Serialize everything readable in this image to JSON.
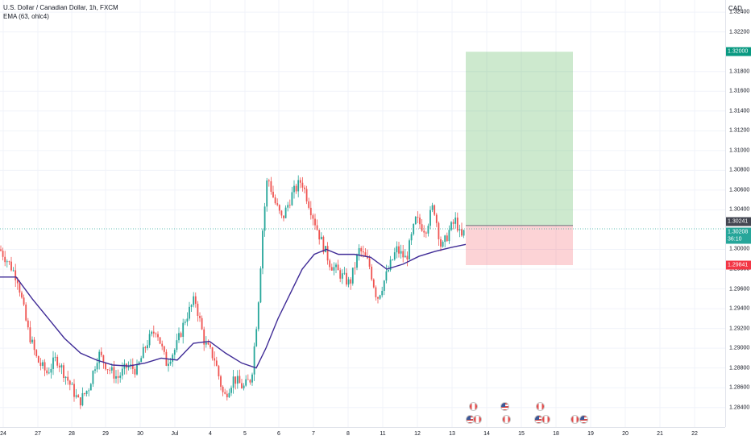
{
  "legend": {
    "symbol": "U.S. Dollar / Canadian Dollar, 1h, FXCM",
    "indicator": "EMA (63, ohlc4)"
  },
  "currency": "CAD",
  "price_axis": {
    "ticks": [
      "1.32400",
      "1.32200",
      "1.31800",
      "1.31600",
      "1.31400",
      "1.31200",
      "1.31000",
      "1.30800",
      "1.30600",
      "1.30400",
      "1.30000",
      "1.29800",
      "1.29600",
      "1.29400",
      "1.29200",
      "1.29000",
      "1.28800",
      "1.28600",
      "1.28400"
    ],
    "tags": [
      {
        "name": "target-price-tag",
        "label": "1.32000",
        "color": "#089981"
      },
      {
        "name": "entry-price-tag",
        "label": "1.30241",
        "color": "#434651"
      },
      {
        "name": "last-price-tag",
        "label": "1.30208",
        "color": "#26a69a"
      },
      {
        "name": "countdown-tag",
        "label": "36:10",
        "color": "#26a69a"
      },
      {
        "name": "stop-price-tag",
        "label": "1.29841",
        "color": "#f23645"
      }
    ]
  },
  "time_axis": {
    "labels": [
      "24",
      "27",
      "28",
      "29",
      "30",
      "Jul",
      "4",
      "5",
      "6",
      "7",
      "8",
      "11",
      "12",
      "13",
      "14",
      "15",
      "18",
      "19",
      "20",
      "21",
      "22"
    ]
  },
  "chart_data": {
    "type": "candlestick",
    "instrument": "U.S. Dollar / Canadian Dollar",
    "interval": "1h",
    "source": "FXCM",
    "ylim": [
      1.283,
      1.3245
    ],
    "indicator": "EMA (63, ohlc4)",
    "bull_color": "#26a69a",
    "bear_color": "#ef5350",
    "ema_color": "#3f2b96",
    "price_path": [
      [
        0,
        1.3
      ],
      [
        12,
        1.2985
      ],
      [
        22,
        1.297
      ],
      [
        34,
        1.292
      ],
      [
        46,
        1.2888
      ],
      [
        58,
        1.2875
      ],
      [
        70,
        1.289
      ],
      [
        84,
        1.2868
      ],
      [
        98,
        1.2845
      ],
      [
        110,
        1.286
      ],
      [
        122,
        1.2895
      ],
      [
        134,
        1.288
      ],
      [
        146,
        1.287
      ],
      [
        158,
        1.2882
      ],
      [
        170,
        1.2878
      ],
      [
        182,
        1.2905
      ],
      [
        194,
        1.292
      ],
      [
        206,
        1.2885
      ],
      [
        218,
        1.29
      ],
      [
        230,
        1.293
      ],
      [
        242,
        1.295
      ],
      [
        254,
        1.2905
      ],
      [
        266,
        1.289
      ],
      [
        278,
        1.285
      ],
      [
        290,
        1.287
      ],
      [
        302,
        1.286
      ],
      [
        312,
        1.287
      ],
      [
        320,
        1.294
      ],
      [
        326,
        1.302
      ],
      [
        332,
        1.3075
      ],
      [
        340,
        1.305
      ],
      [
        350,
        1.303
      ],
      [
        362,
        1.3055
      ],
      [
        374,
        1.307
      ],
      [
        386,
        1.304
      ],
      [
        398,
        1.301
      ],
      [
        410,
        1.2985
      ],
      [
        422,
        1.2975
      ],
      [
        434,
        1.2965
      ],
      [
        446,
        1.3
      ],
      [
        458,
        1.2985
      ],
      [
        468,
        1.295
      ],
      [
        480,
        1.2975
      ],
      [
        492,
        1.3
      ],
      [
        504,
        1.299
      ],
      [
        516,
        1.303
      ],
      [
        528,
        1.302
      ],
      [
        538,
        1.3045
      ],
      [
        548,
        1.3
      ],
      [
        558,
        1.302
      ],
      [
        566,
        1.303
      ],
      [
        572,
        1.301
      ],
      [
        578,
        1.3021
      ]
    ],
    "ema_path": [
      [
        0,
        1.2972
      ],
      [
        20,
        1.2972
      ],
      [
        40,
        1.295
      ],
      [
        60,
        1.293
      ],
      [
        80,
        1.291
      ],
      [
        100,
        1.2895
      ],
      [
        120,
        1.2888
      ],
      [
        140,
        1.2883
      ],
      [
        160,
        1.2882
      ],
      [
        180,
        1.2885
      ],
      [
        200,
        1.289
      ],
      [
        220,
        1.2888
      ],
      [
        240,
        1.2905
      ],
      [
        260,
        1.2907
      ],
      [
        280,
        1.2895
      ],
      [
        300,
        1.2885
      ],
      [
        318,
        1.288
      ],
      [
        330,
        1.29
      ],
      [
        345,
        1.293
      ],
      [
        360,
        1.2955
      ],
      [
        375,
        1.298
      ],
      [
        390,
        1.2995
      ],
      [
        405,
        1.3
      ],
      [
        420,
        1.2995
      ],
      [
        440,
        1.2995
      ],
      [
        460,
        1.2992
      ],
      [
        480,
        1.298
      ],
      [
        500,
        1.2985
      ],
      [
        520,
        1.2993
      ],
      [
        540,
        1.2998
      ],
      [
        560,
        1.3002
      ],
      [
        578,
        1.3005
      ]
    ],
    "position": {
      "type": "long",
      "entry": 1.30241,
      "target": 1.32,
      "stop": 1.29841,
      "profit_color": "rgba(76,175,80,0.28)",
      "loss_color": "rgba(242,54,69,0.22)"
    },
    "last_price": 1.30208
  },
  "events": [
    {
      "flag": "ca",
      "row": 0,
      "x": 587
    },
    {
      "flag": "us",
      "row": 1,
      "x": 583
    },
    {
      "flag": "ca",
      "row": 1,
      "x": 592
    },
    {
      "flag": "us",
      "row": 0,
      "x": 626
    },
    {
      "flag": "ca",
      "row": 1,
      "x": 628
    },
    {
      "flag": "ca",
      "row": 0,
      "x": 670
    },
    {
      "flag": "us",
      "row": 1,
      "x": 668
    },
    {
      "flag": "ca",
      "row": 1,
      "x": 677
    },
    {
      "flag": "ca",
      "row": 1,
      "x": 713
    },
    {
      "flag": "us",
      "row": 1,
      "x": 724
    }
  ]
}
